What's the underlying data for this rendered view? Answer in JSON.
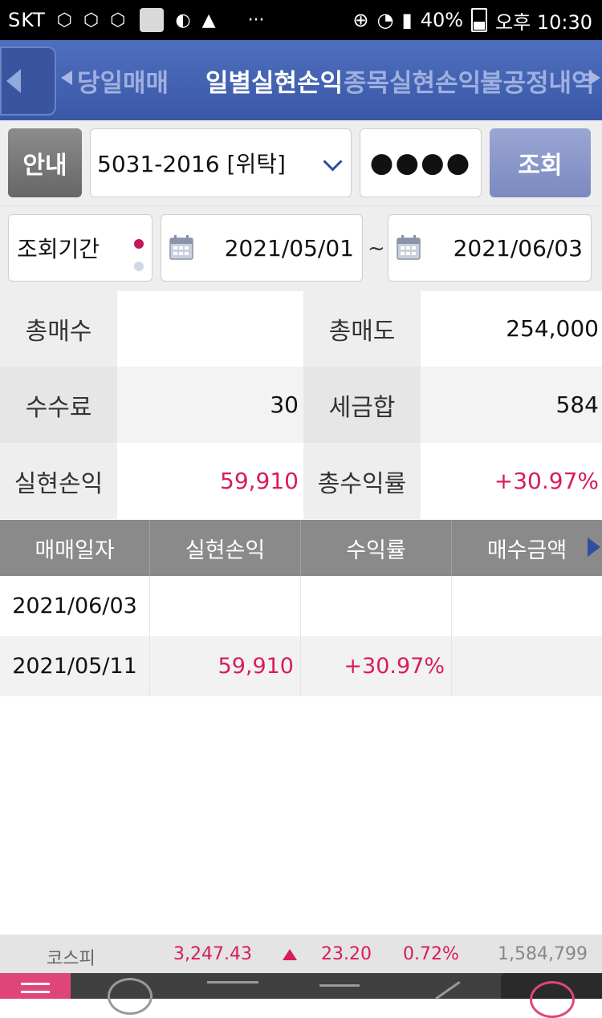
{
  "status_bar": {
    "carrier": "SKT",
    "battery": "40%",
    "time": "오후 10:30",
    "icons": [
      "hexagon-icon",
      "play-hex-icon",
      "play-hex-icon",
      "app-square-icon",
      "o-icon",
      "warning-icon",
      "more-icon",
      "plus-circle-icon",
      "wifi-icon",
      "signal-icon",
      "battery-icon"
    ]
  },
  "tabs": {
    "items": [
      "당일매매",
      "일별실현손익",
      "종목실현손익",
      "불공정내역"
    ],
    "active": "일별실현손익"
  },
  "account": {
    "guide_label": "안내",
    "account_value": "5031-2016 [위탁]",
    "password_mask": "●●●●",
    "query_label": "조회"
  },
  "period": {
    "label": "조회기간",
    "start_date": "2021/05/01",
    "separator": "~",
    "end_date": "2021/06/03"
  },
  "summary": {
    "total_buy_label": "총매수",
    "total_buy_value": "",
    "total_sell_label": "총매도",
    "total_sell_value": "254,000",
    "fee_label": "수수료",
    "fee_value": "30",
    "tax_label": "세금합",
    "tax_value": "584",
    "realized_pl_label": "실현손익",
    "realized_pl_value": "59,910",
    "total_return_label": "총수익률",
    "total_return_value": "+30.97%"
  },
  "table": {
    "columns": [
      "매매일자",
      "실현손익",
      "수익률",
      "매수금액"
    ],
    "rows": [
      {
        "date": "2021/06/03",
        "pl": "",
        "rate": "",
        "buy": ""
      },
      {
        "date": "2021/05/11",
        "pl": "59,910",
        "rate": "+30.97%",
        "buy": ""
      }
    ]
  },
  "ticker": {
    "index_name": "코스피",
    "index_value": "3,247.43",
    "change": "23.20",
    "change_rate": "0.72%",
    "volume": "1,584,799"
  },
  "colors": {
    "accent_pink": "#d81b60",
    "header_blue": "#3a57a6",
    "label_gray": "#eeeeee"
  }
}
